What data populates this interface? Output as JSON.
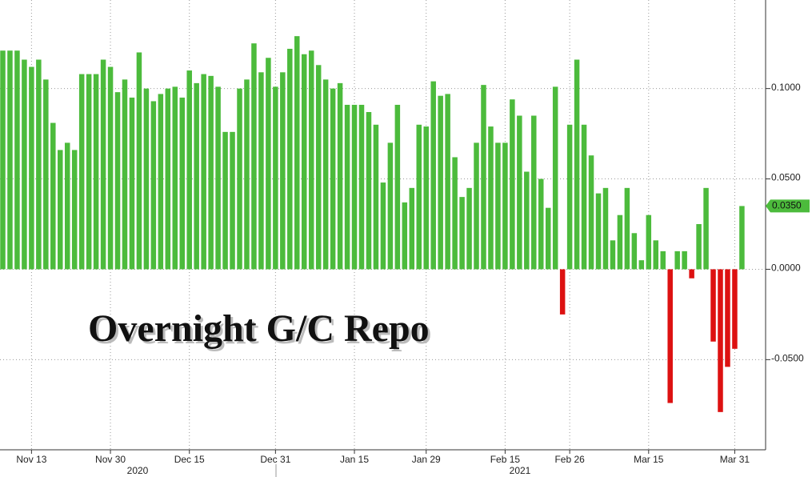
{
  "chart_data": {
    "type": "bar",
    "title": "Overnight G/C Repo",
    "categories": [
      null,
      null,
      null,
      null,
      "Nov 13",
      null,
      null,
      null,
      null,
      null,
      null,
      null,
      null,
      null,
      null,
      "Nov 30",
      null,
      null,
      null,
      null,
      null,
      null,
      null,
      null,
      null,
      null,
      "Dec 15",
      null,
      null,
      null,
      null,
      null,
      null,
      null,
      null,
      null,
      null,
      null,
      "Dec 31",
      null,
      null,
      null,
      null,
      null,
      null,
      null,
      null,
      null,
      null,
      "Jan 15",
      null,
      null,
      null,
      null,
      null,
      null,
      null,
      null,
      null,
      "Jan 29",
      null,
      null,
      null,
      null,
      null,
      null,
      null,
      null,
      null,
      null,
      "Feb 15",
      null,
      null,
      null,
      null,
      null,
      null,
      null,
      null,
      "Feb 26",
      null,
      null,
      null,
      null,
      null,
      null,
      null,
      null,
      null,
      null,
      "Mar 15",
      null,
      null,
      null,
      null,
      null,
      null,
      null,
      null,
      null,
      null,
      null,
      "Mar 31",
      null
    ],
    "values": [
      0.121,
      0.121,
      0.121,
      0.116,
      0.112,
      0.116,
      0.105,
      0.081,
      0.066,
      0.07,
      0.066,
      0.108,
      0.108,
      0.108,
      0.116,
      0.112,
      0.098,
      0.105,
      0.095,
      0.12,
      0.1,
      0.093,
      0.097,
      0.1,
      0.101,
      0.095,
      0.11,
      0.103,
      0.108,
      0.107,
      0.101,
      0.076,
      0.076,
      0.1,
      0.105,
      0.125,
      0.109,
      0.117,
      0.101,
      0.109,
      0.122,
      0.129,
      0.119,
      0.121,
      0.113,
      0.105,
      0.1,
      0.103,
      0.091,
      0.091,
      0.091,
      0.087,
      0.08,
      0.048,
      0.07,
      0.091,
      0.037,
      0.045,
      0.08,
      0.079,
      0.104,
      0.096,
      0.097,
      0.062,
      0.04,
      0.045,
      0.07,
      0.102,
      0.079,
      0.07,
      0.07,
      0.094,
      0.085,
      0.054,
      0.085,
      0.05,
      0.034,
      0.101,
      -0.025,
      0.08,
      0.116,
      0.08,
      0.063,
      0.042,
      0.045,
      0.016,
      0.03,
      0.045,
      0.02,
      0.005,
      0.03,
      0.016,
      0.01,
      -0.074,
      0.01,
      0.01,
      -0.005,
      0.025,
      0.045,
      -0.04,
      -0.079,
      -0.054,
      -0.044,
      0.035
    ],
    "positive_color": "#4cbb3c",
    "negative_color": "#dd1111",
    "ylim": [
      -0.099,
      0.149
    ],
    "yticks": [
      {
        "value": 0.1,
        "label": "0.1000"
      },
      {
        "value": 0.05,
        "label": "0.0500"
      },
      {
        "value": 0,
        "label": "0.0000"
      },
      {
        "value": -0.05,
        "label": "-0.0500"
      }
    ],
    "last_value_label": "0.0350",
    "x_groups": [
      "2020",
      "2021"
    ],
    "grid": true
  }
}
